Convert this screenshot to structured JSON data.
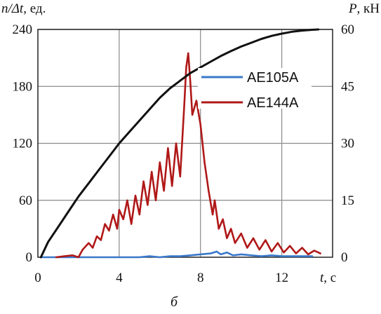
{
  "chart_data": {
    "type": "line",
    "caption": "б",
    "x_axis": {
      "title_var": "t",
      "title_unit": ", с",
      "range": [
        0,
        14.5
      ],
      "ticks": [
        0,
        4,
        8,
        12
      ],
      "tick_labels": [
        "0",
        "4",
        "8",
        "12"
      ]
    },
    "y_left": {
      "title_var": "n/Δt",
      "title_unit": ", ед.",
      "range": [
        0,
        240
      ],
      "ticks": [
        0,
        60,
        120,
        180,
        240
      ],
      "tick_labels": [
        "0",
        "60",
        "120",
        "180",
        "240"
      ]
    },
    "y_right": {
      "title_var": "P",
      "title_unit": ", кН",
      "range": [
        0,
        60
      ],
      "ticks": [
        0,
        15,
        30,
        45,
        60
      ],
      "tick_labels": [
        "0",
        "15",
        "30",
        "45",
        "60"
      ]
    },
    "grid": true,
    "legend": {
      "placement": "right"
    },
    "series": [
      {
        "name": "AE105A",
        "axis": "left",
        "color": "#3a78c9",
        "points": [
          [
            0.2,
            0
          ],
          [
            1,
            0
          ],
          [
            2,
            0
          ],
          [
            3,
            0
          ],
          [
            4,
            0
          ],
          [
            4.5,
            0
          ],
          [
            5,
            0
          ],
          [
            5.5,
            1
          ],
          [
            6,
            0
          ],
          [
            6.5,
            1
          ],
          [
            7,
            1
          ],
          [
            7.5,
            2
          ],
          [
            8,
            3
          ],
          [
            8.5,
            4
          ],
          [
            8.8,
            6
          ],
          [
            9,
            3
          ],
          [
            9.3,
            5
          ],
          [
            9.6,
            2
          ],
          [
            10,
            3
          ],
          [
            10.5,
            2
          ],
          [
            11,
            1
          ],
          [
            11.5,
            2
          ],
          [
            12,
            1
          ],
          [
            12.5,
            1
          ],
          [
            13,
            1
          ],
          [
            13.5,
            1
          ]
        ]
      },
      {
        "name": "AE144A",
        "axis": "left",
        "color": "#b01818",
        "points": [
          [
            0.9,
            0
          ],
          [
            1.3,
            1
          ],
          [
            1.7,
            2
          ],
          [
            2.0,
            0
          ],
          [
            2.2,
            8
          ],
          [
            2.5,
            15
          ],
          [
            2.7,
            10
          ],
          [
            2.9,
            22
          ],
          [
            3.1,
            18
          ],
          [
            3.3,
            35
          ],
          [
            3.5,
            28
          ],
          [
            3.7,
            45
          ],
          [
            3.9,
            30
          ],
          [
            4.0,
            50
          ],
          [
            4.2,
            40
          ],
          [
            4.4,
            60
          ],
          [
            4.6,
            35
          ],
          [
            4.8,
            65
          ],
          [
            5.0,
            45
          ],
          [
            5.2,
            80
          ],
          [
            5.4,
            55
          ],
          [
            5.6,
            90
          ],
          [
            5.8,
            60
          ],
          [
            6.0,
            100
          ],
          [
            6.2,
            70
          ],
          [
            6.4,
            115
          ],
          [
            6.6,
            75
          ],
          [
            6.8,
            120
          ],
          [
            7.0,
            85
          ],
          [
            7.2,
            160
          ],
          [
            7.3,
            200
          ],
          [
            7.4,
            215
          ],
          [
            7.5,
            185
          ],
          [
            7.6,
            150
          ],
          [
            7.8,
            165
          ],
          [
            8.0,
            140
          ],
          [
            8.2,
            100
          ],
          [
            8.4,
            70
          ],
          [
            8.6,
            45
          ],
          [
            8.7,
            60
          ],
          [
            8.9,
            30
          ],
          [
            9.1,
            40
          ],
          [
            9.3,
            20
          ],
          [
            9.5,
            30
          ],
          [
            9.7,
            15
          ],
          [
            10.0,
            25
          ],
          [
            10.3,
            10
          ],
          [
            10.6,
            20
          ],
          [
            10.9,
            8
          ],
          [
            11.2,
            18
          ],
          [
            11.5,
            6
          ],
          [
            11.8,
            15
          ],
          [
            12.1,
            5
          ],
          [
            12.4,
            12
          ],
          [
            12.7,
            4
          ],
          [
            13.0,
            10
          ],
          [
            13.3,
            3
          ],
          [
            13.6,
            7
          ],
          [
            13.9,
            4
          ]
        ]
      },
      {
        "name": "P",
        "axis": "right",
        "color": "#111111",
        "points": [
          [
            0.15,
            0
          ],
          [
            0.5,
            4
          ],
          [
            1,
            8
          ],
          [
            1.5,
            12
          ],
          [
            2,
            16
          ],
          [
            2.5,
            19.5
          ],
          [
            3,
            23
          ],
          [
            3.5,
            26.5
          ],
          [
            4,
            30
          ],
          [
            4.5,
            33
          ],
          [
            5,
            36
          ],
          [
            5.5,
            39
          ],
          [
            6,
            42
          ],
          [
            6.5,
            44.5
          ],
          [
            7,
            46.5
          ],
          [
            7.5,
            48.5
          ],
          [
            8,
            50
          ],
          [
            8.5,
            51.5
          ],
          [
            9,
            53
          ],
          [
            9.5,
            54.3
          ],
          [
            10,
            55.5
          ],
          [
            10.5,
            56.5
          ],
          [
            11,
            57.5
          ],
          [
            11.5,
            58.3
          ],
          [
            12,
            58.9
          ],
          [
            12.5,
            59.4
          ],
          [
            13,
            59.7
          ],
          [
            13.5,
            59.9
          ],
          [
            13.8,
            60
          ]
        ]
      }
    ]
  }
}
